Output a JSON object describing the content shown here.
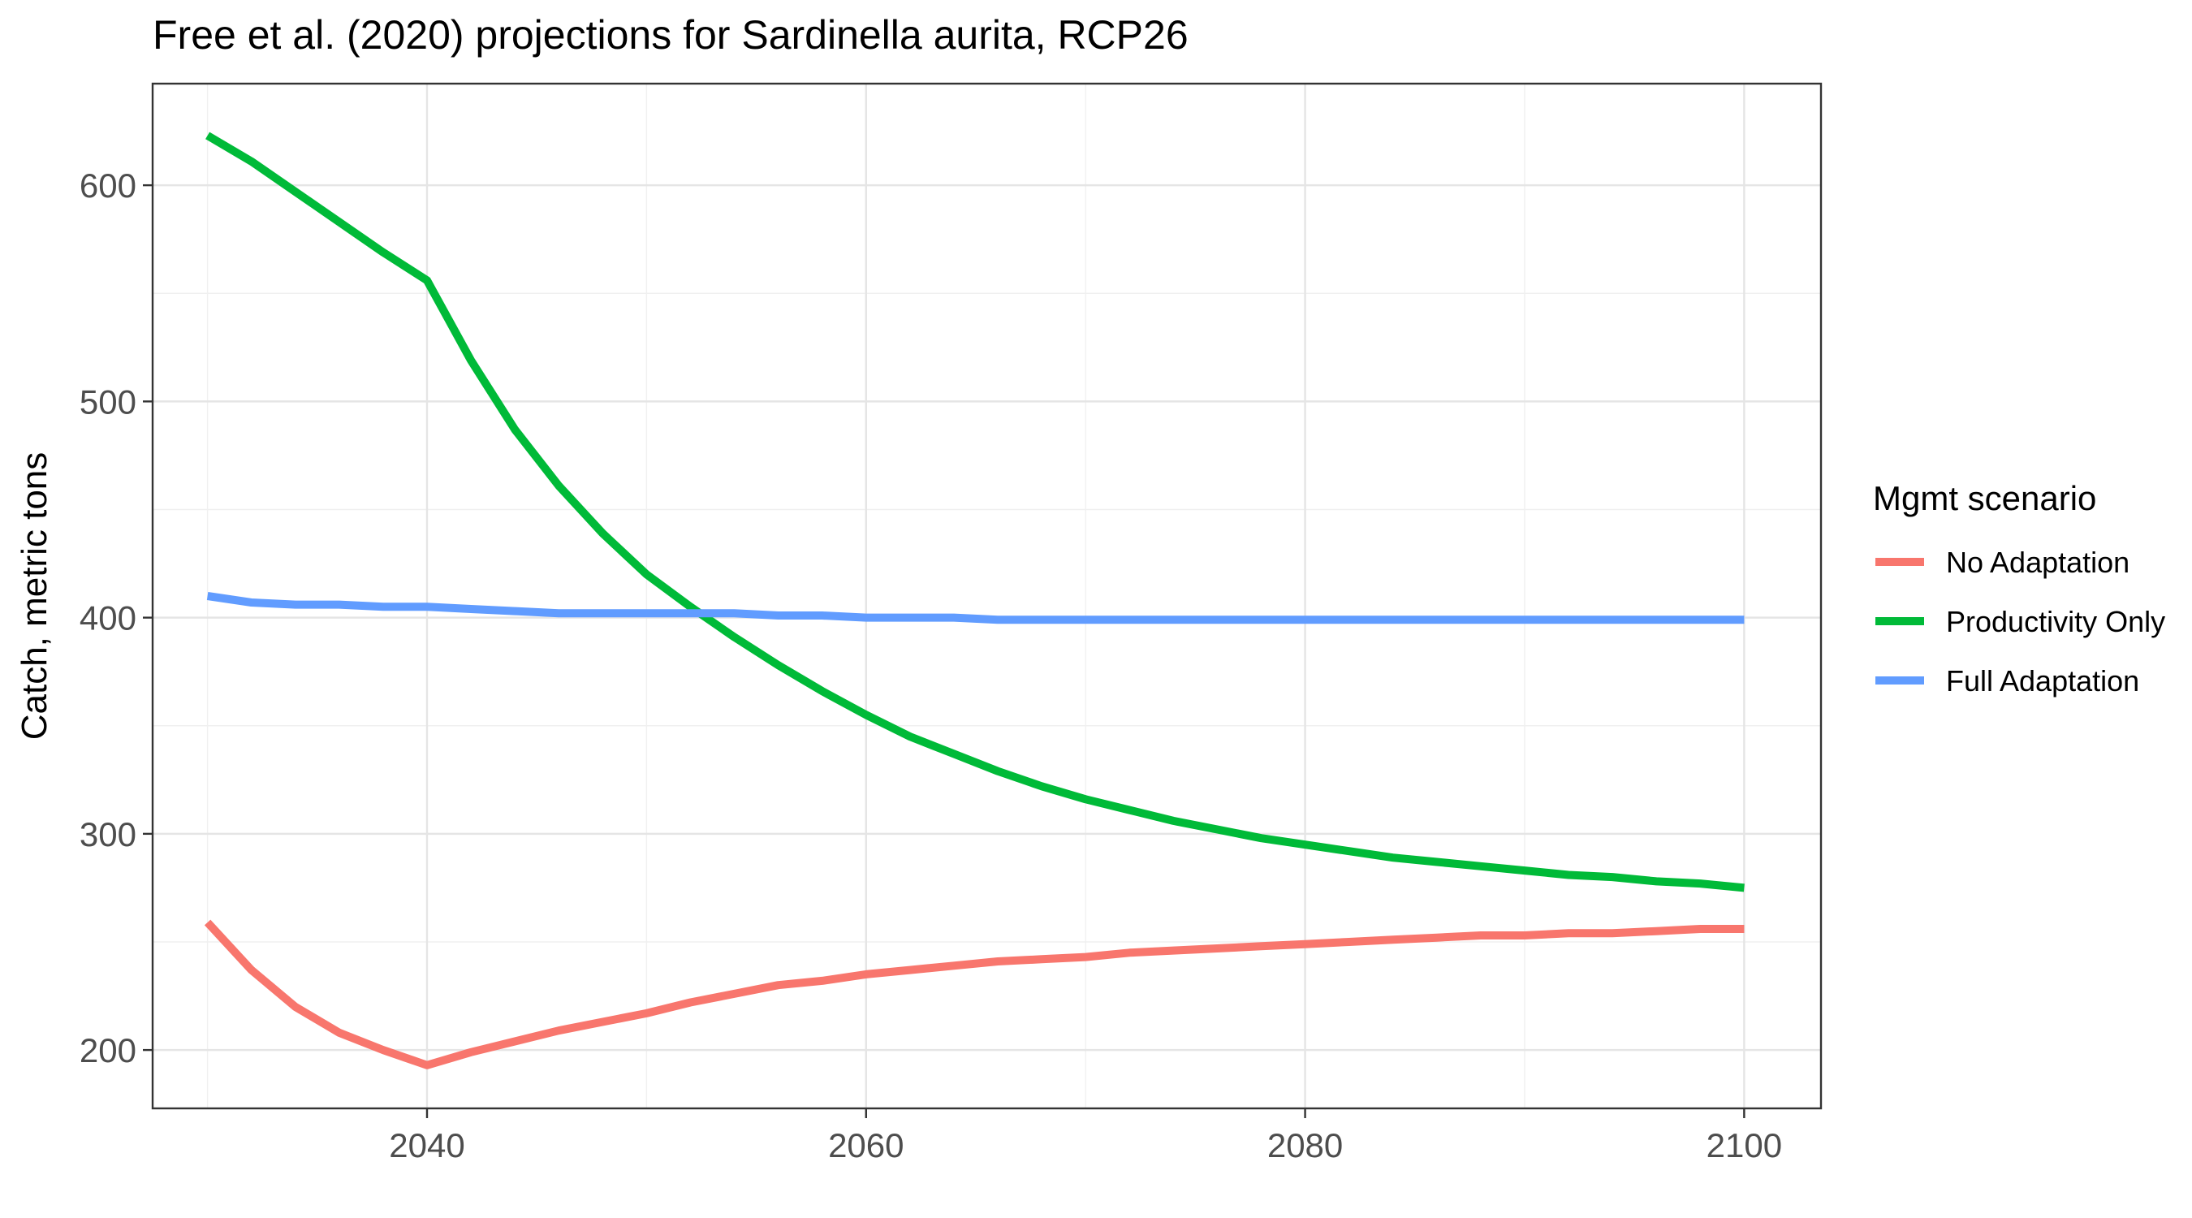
{
  "chart_data": {
    "type": "line",
    "title": "Free et al. (2020) projections for Sardinella aurita, RCP26",
    "xlabel": "",
    "ylabel": "Catch, metric tons",
    "xlim": [
      2027.5,
      2103.5
    ],
    "ylim": [
      173,
      647
    ],
    "x_ticks": [
      2040,
      2060,
      2080,
      2100
    ],
    "y_ticks": [
      200,
      300,
      400,
      500,
      600
    ],
    "x_tick_labels": [
      "2040",
      "2060",
      "2080",
      "2100"
    ],
    "y_tick_labels": [
      "200",
      "300",
      "400",
      "500",
      "600"
    ],
    "grid": true,
    "legend": {
      "title": "Mgmt scenario",
      "position": "right"
    },
    "series": [
      {
        "name": "No Adaptation",
        "color": "#F8766D",
        "x": [
          2030,
          2032,
          2034,
          2036,
          2038,
          2040,
          2042,
          2044,
          2046,
          2048,
          2050,
          2052,
          2054,
          2056,
          2058,
          2060,
          2062,
          2064,
          2066,
          2068,
          2070,
          2072,
          2074,
          2076,
          2078,
          2080,
          2082,
          2084,
          2086,
          2088,
          2090,
          2092,
          2094,
          2096,
          2098,
          2100
        ],
        "y": [
          259,
          237,
          220,
          208,
          200,
          193,
          199,
          204,
          209,
          213,
          217,
          222,
          226,
          230,
          232,
          235,
          237,
          239,
          241,
          242,
          243,
          245,
          246,
          247,
          248,
          249,
          250,
          251,
          252,
          253,
          253,
          254,
          254,
          255,
          256,
          256
        ]
      },
      {
        "name": "Productivity Only",
        "color": "#00BA38",
        "x": [
          2030,
          2032,
          2034,
          2036,
          2038,
          2040,
          2042,
          2044,
          2046,
          2048,
          2050,
          2052,
          2054,
          2056,
          2058,
          2060,
          2062,
          2064,
          2066,
          2068,
          2070,
          2072,
          2074,
          2076,
          2078,
          2080,
          2082,
          2084,
          2086,
          2088,
          2090,
          2092,
          2094,
          2096,
          2098,
          2100
        ],
        "y": [
          623,
          611,
          597,
          583,
          569,
          556,
          519,
          487,
          461,
          439,
          420,
          405,
          391,
          378,
          366,
          355,
          345,
          337,
          329,
          322,
          316,
          311,
          306,
          302,
          298,
          295,
          292,
          289,
          287,
          285,
          283,
          281,
          280,
          278,
          277,
          275
        ]
      },
      {
        "name": "Full Adaptation",
        "color": "#619CFF",
        "x": [
          2030,
          2032,
          2034,
          2036,
          2038,
          2040,
          2042,
          2044,
          2046,
          2048,
          2050,
          2052,
          2054,
          2056,
          2058,
          2060,
          2062,
          2064,
          2066,
          2068,
          2070,
          2072,
          2074,
          2076,
          2078,
          2080,
          2082,
          2084,
          2086,
          2088,
          2090,
          2092,
          2094,
          2096,
          2098,
          2100
        ],
        "y": [
          410,
          407,
          406,
          406,
          405,
          405,
          404,
          403,
          402,
          402,
          402,
          402,
          402,
          401,
          401,
          400,
          400,
          400,
          399,
          399,
          399,
          399,
          399,
          399,
          399,
          399,
          399,
          399,
          399,
          399,
          399,
          399,
          399,
          399,
          399,
          399
        ]
      }
    ]
  }
}
